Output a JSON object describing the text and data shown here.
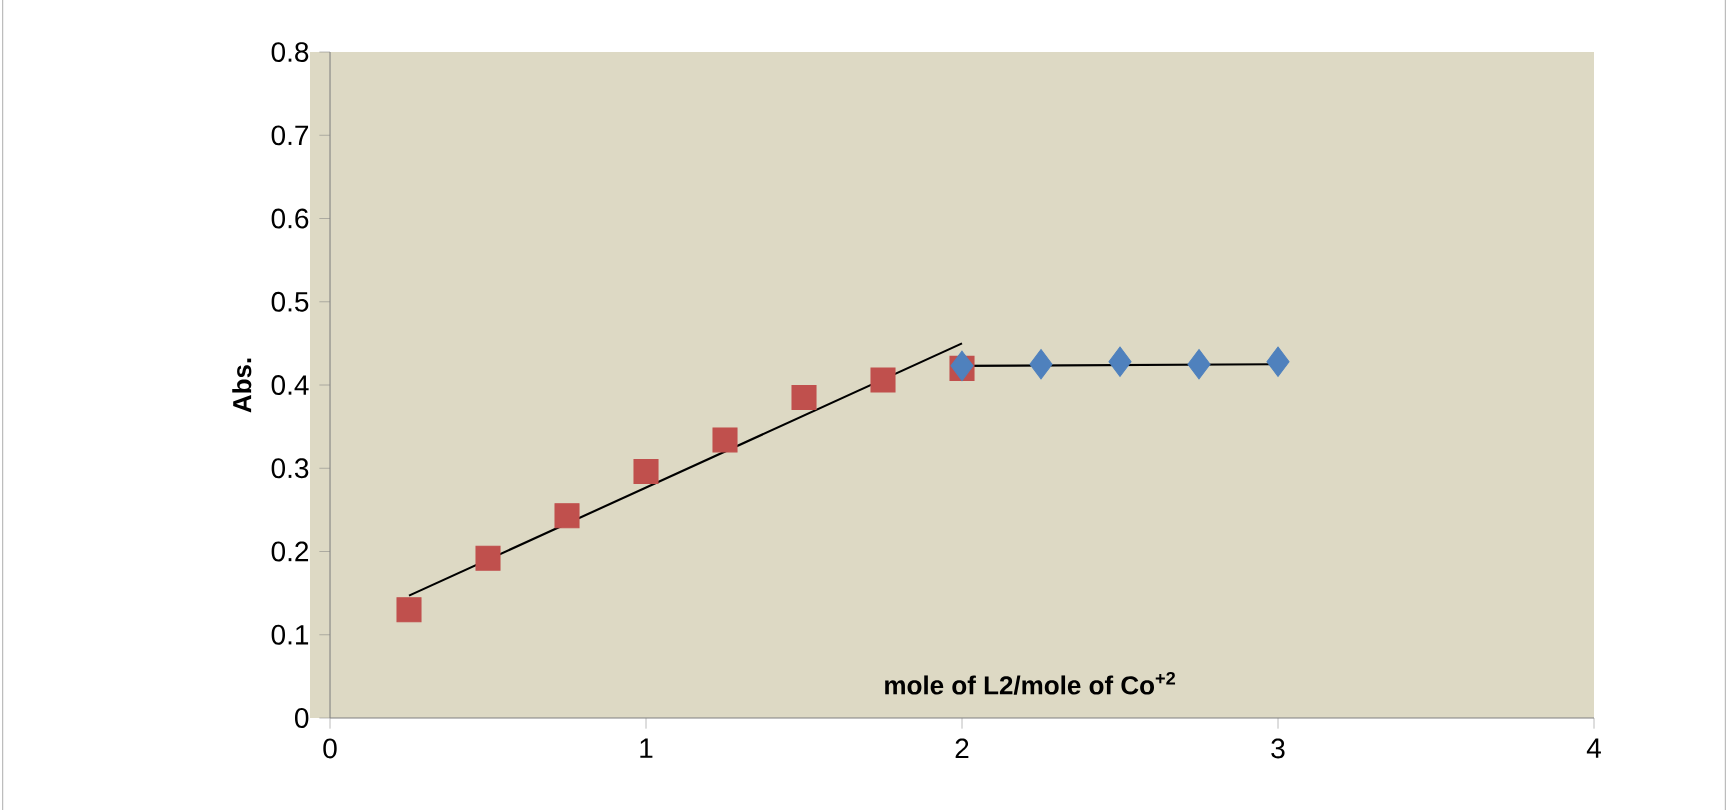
{
  "chart_data": {
    "type": "scatter",
    "xlabel": "mole of L2/mole of Co$^{+2}$",
    "ylabel": "Abs.",
    "xlim": [
      0,
      4
    ],
    "ylim": [
      0,
      0.8
    ],
    "xticks": [
      0,
      1,
      2,
      3,
      4
    ],
    "yticks": [
      0,
      0.1,
      0.2,
      0.3,
      0.4,
      0.5,
      0.6,
      0.7,
      0.8
    ],
    "series": [
      {
        "marker": "square",
        "color": "#c0504d",
        "x": [
          0.25,
          0.5,
          0.75,
          1,
          1.25,
          1.5,
          1.75,
          2
        ],
        "values": [
          0.13,
          0.192,
          0.243,
          0.296,
          0.334,
          0.385,
          0.406,
          0.42
        ]
      },
      {
        "marker": "diamond",
        "color": "#4f81bd",
        "x": [
          2,
          2.25,
          2.5,
          2.75,
          3
        ],
        "values": [
          0.423,
          0.425,
          0.428,
          0.425,
          0.428
        ]
      },
      {
        "type": "line",
        "marker": "none",
        "color": "#000000",
        "x": [
          0.25,
          2
        ],
        "values": [
          0.147,
          0.45
        ]
      },
      {
        "type": "line",
        "marker": "none",
        "color": "#000000",
        "x": [
          2,
          3
        ],
        "values": [
          0.423,
          0.425
        ]
      }
    ]
  }
}
